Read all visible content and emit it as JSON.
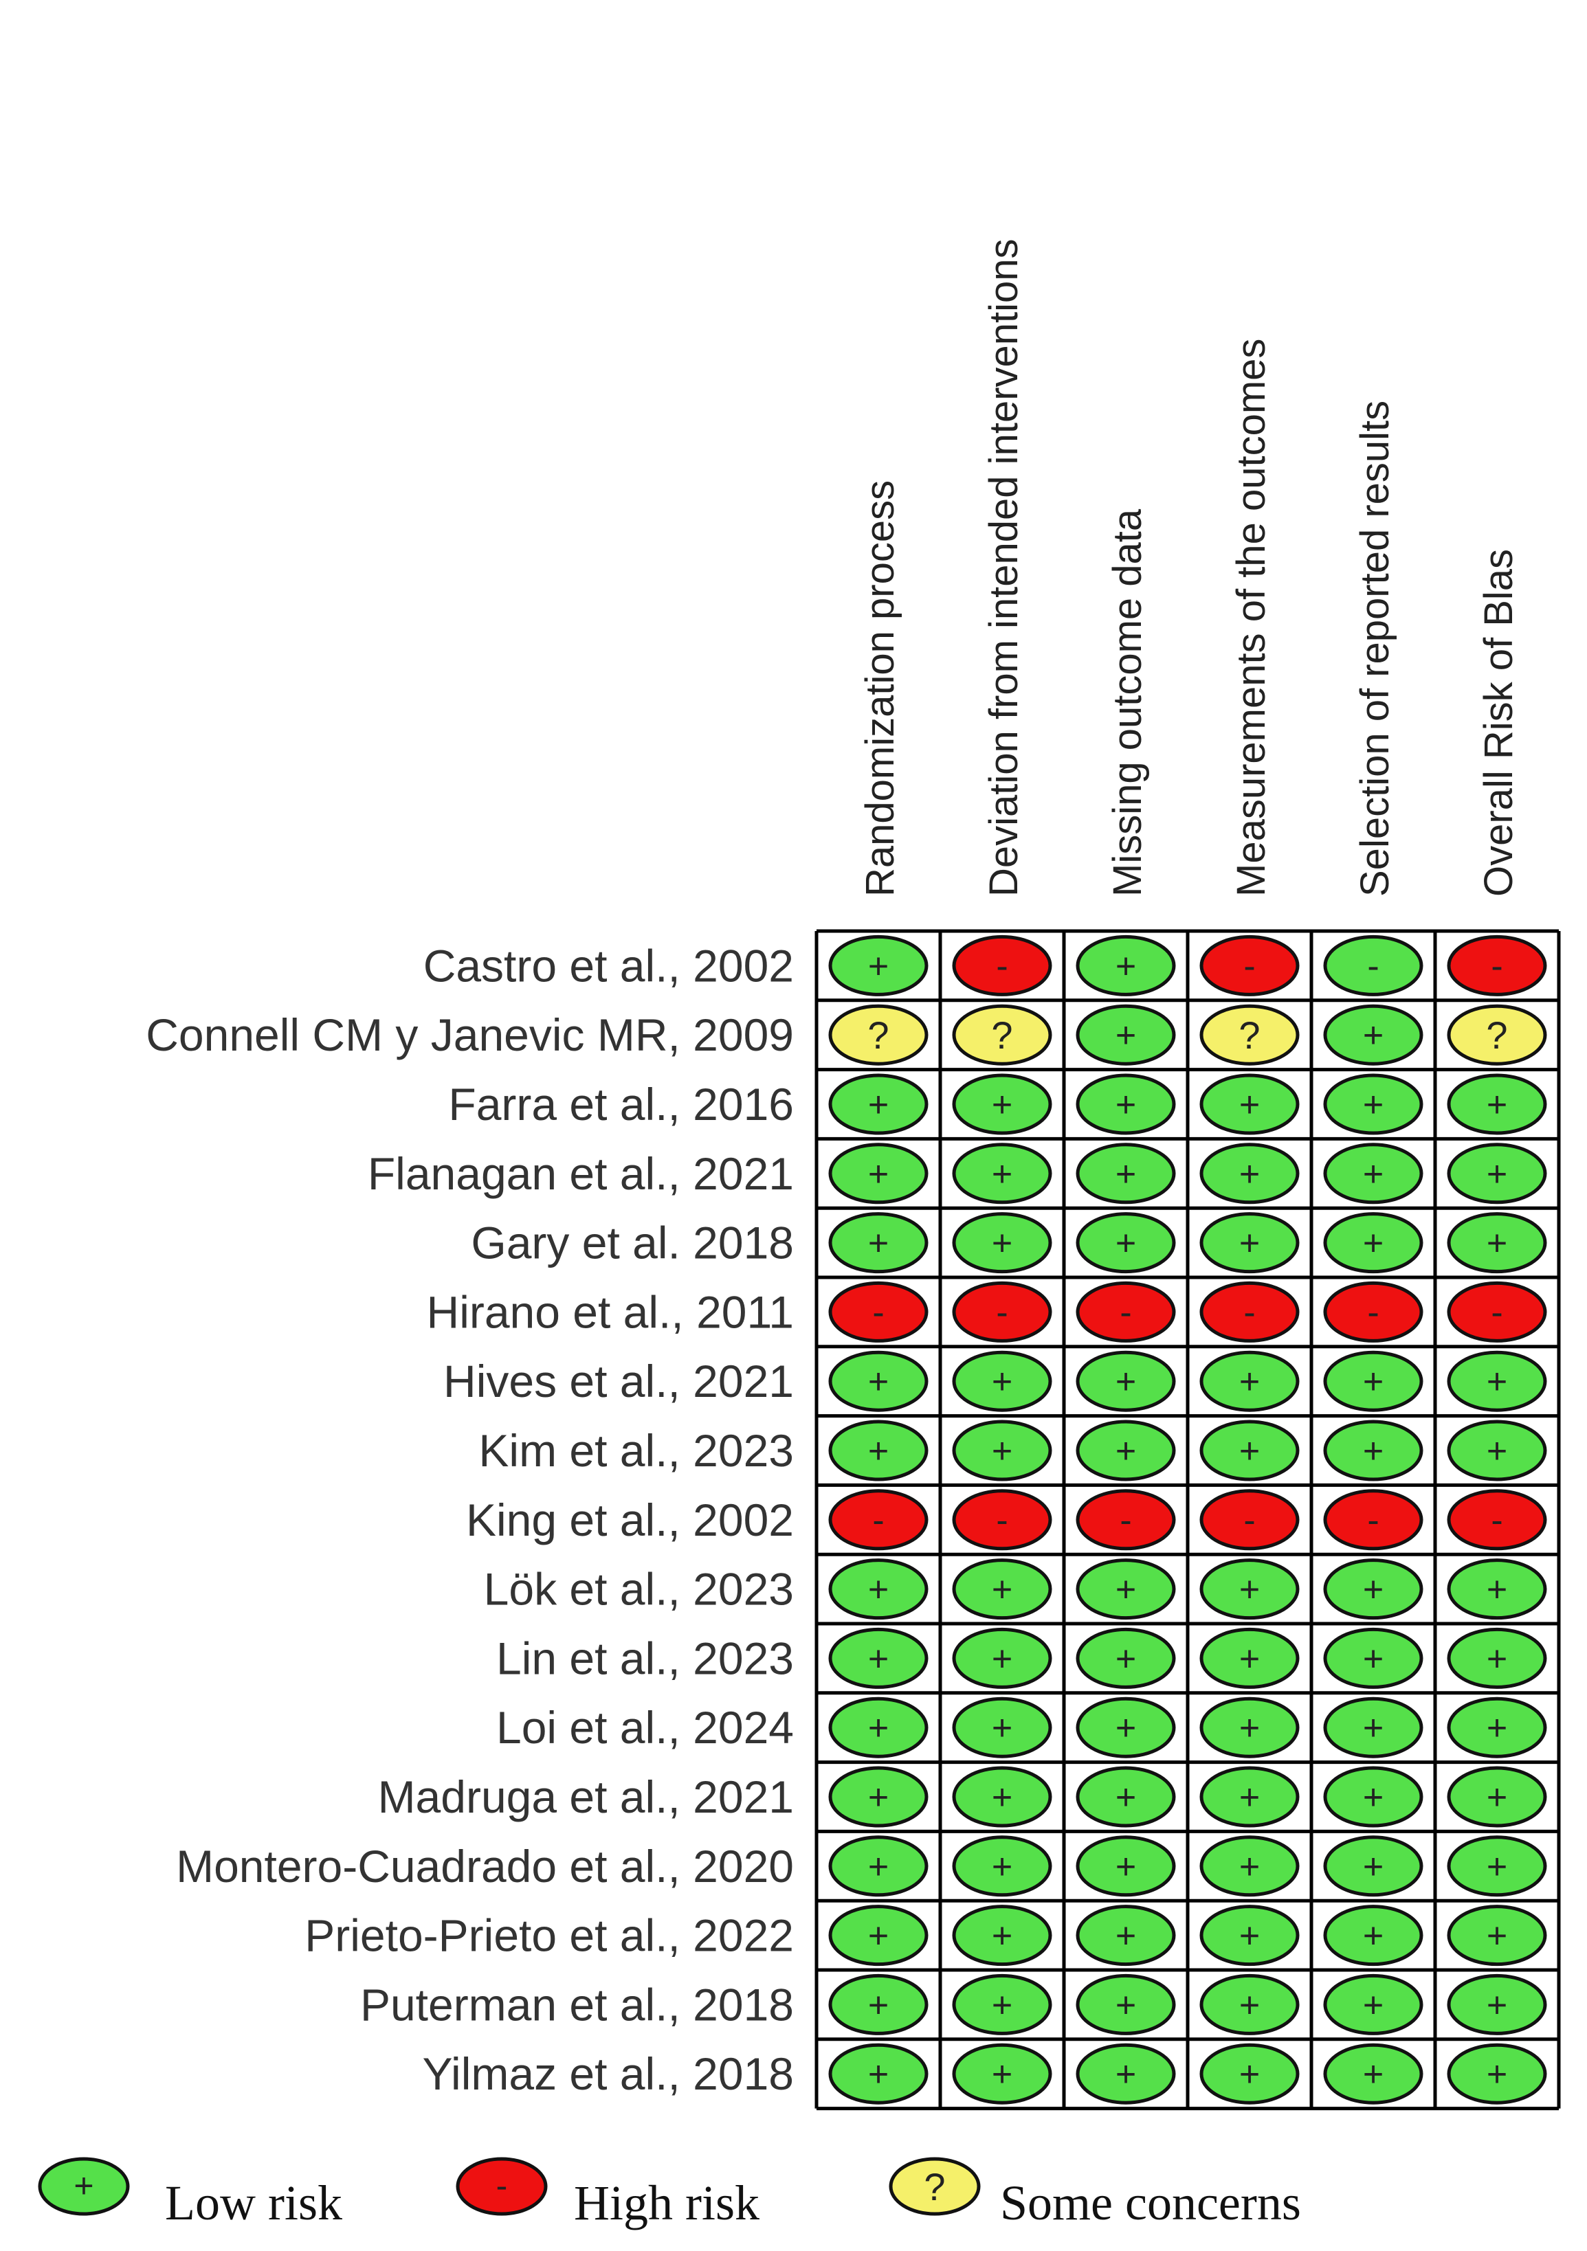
{
  "chart_data": {
    "type": "table",
    "title": "",
    "columns": [
      "Randomization process",
      "Deviation from intended interventions",
      "Missing outcome data",
      "Measurements of the outcomes",
      "Selection of reported results",
      "Overall Risk of Blas"
    ],
    "rows": [
      {
        "study": "Castro et al., 2002",
        "ratings": [
          "low",
          "high",
          "low",
          "high",
          "low-dash",
          "high"
        ]
      },
      {
        "study": "Connell CM y Janevic MR, 2009",
        "ratings": [
          "some",
          "some",
          "low",
          "some",
          "low",
          "some"
        ]
      },
      {
        "study": "Farra et al., 2016",
        "ratings": [
          "low",
          "low",
          "low",
          "low",
          "low",
          "low"
        ]
      },
      {
        "study": "Flanagan et al., 2021",
        "ratings": [
          "low",
          "low",
          "low",
          "low",
          "low",
          "low"
        ]
      },
      {
        "study": "Gary et al. 2018",
        "ratings": [
          "low",
          "low",
          "low",
          "low",
          "low",
          "low"
        ]
      },
      {
        "study": "Hirano et al., 2011",
        "ratings": [
          "high",
          "high",
          "high",
          "high",
          "high",
          "high"
        ]
      },
      {
        "study": "Hives et al., 2021",
        "ratings": [
          "low",
          "low",
          "low",
          "low",
          "low",
          "low"
        ]
      },
      {
        "study": "Kim et al., 2023",
        "ratings": [
          "low",
          "low",
          "low",
          "low",
          "low",
          "low"
        ]
      },
      {
        "study": "King et al., 2002",
        "ratings": [
          "high",
          "high",
          "high",
          "high",
          "high",
          "high"
        ]
      },
      {
        "study": "Lök et al., 2023",
        "ratings": [
          "low",
          "low",
          "low",
          "low",
          "low",
          "low"
        ]
      },
      {
        "study": "Lin et al., 2023",
        "ratings": [
          "low",
          "low",
          "low",
          "low",
          "low",
          "low"
        ]
      },
      {
        "study": "Loi et al., 2024",
        "ratings": [
          "low",
          "low",
          "low",
          "low",
          "low",
          "low"
        ]
      },
      {
        "study": "Madruga et al., 2021",
        "ratings": [
          "low",
          "low",
          "low",
          "low",
          "low",
          "low"
        ]
      },
      {
        "study": "Montero-Cuadrado et al., 2020",
        "ratings": [
          "low",
          "low",
          "low",
          "low",
          "low",
          "low"
        ]
      },
      {
        "study": "Prieto-Prieto et al., 2022",
        "ratings": [
          "low",
          "low",
          "low",
          "low",
          "low",
          "low"
        ]
      },
      {
        "study": "Puterman et al., 2018",
        "ratings": [
          "low",
          "low",
          "low",
          "low",
          "low",
          "low"
        ]
      },
      {
        "study": "Yilmaz et al., 2018",
        "ratings": [
          "low",
          "low",
          "low",
          "low",
          "low",
          "low"
        ]
      }
    ],
    "rating_styles": {
      "low": {
        "fill": "#55e04a",
        "symbol": "+"
      },
      "low-dash": {
        "fill": "#55e04a",
        "symbol": "-"
      },
      "high": {
        "fill": "#ee1111",
        "symbol": "-"
      },
      "some": {
        "fill": "#f5f06a",
        "symbol": "?"
      }
    },
    "legend": [
      {
        "key": "low",
        "label": "Low risk"
      },
      {
        "key": "high",
        "label": "High risk"
      },
      {
        "key": "some",
        "label": "Some concerns"
      }
    ]
  }
}
